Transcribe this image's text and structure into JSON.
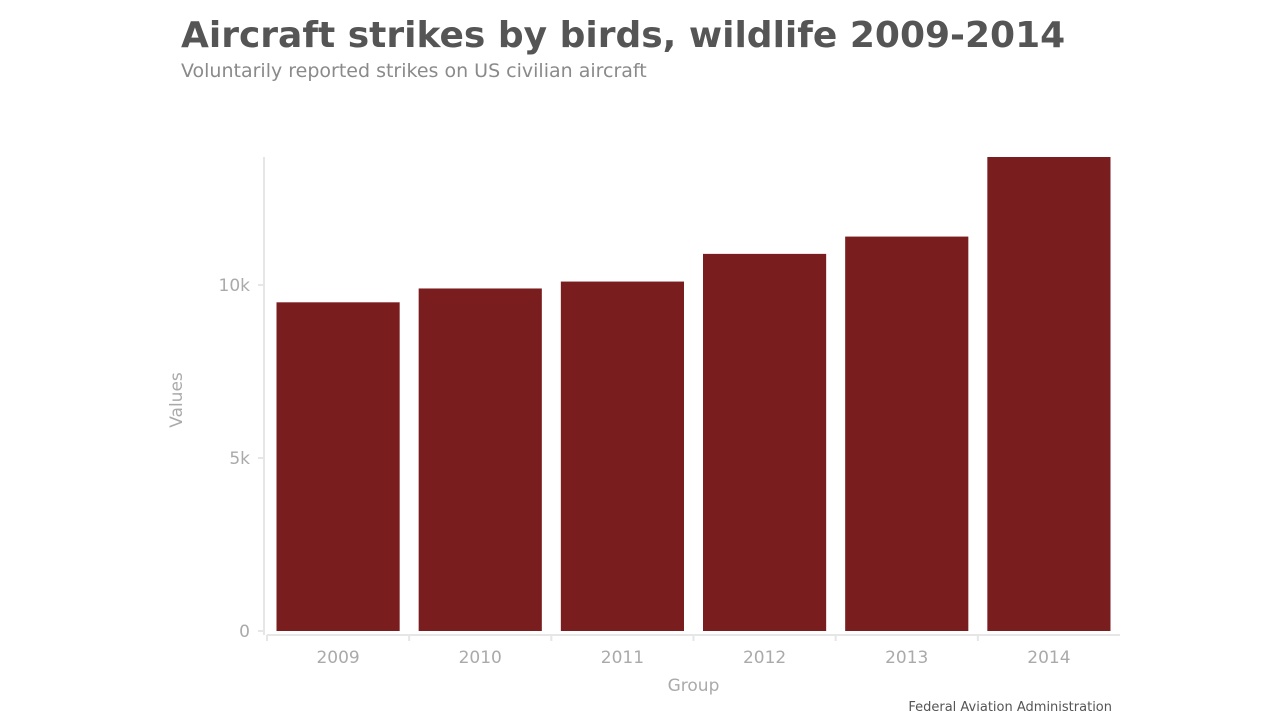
{
  "title": "Aircraft strikes by birds, wildlife 2009-2014",
  "subtitle": "Voluntarily reported strikes on US civilian aircraft",
  "source": "Federal Aviation Administration",
  "colors": {
    "bar": "#7a1d1f",
    "axis_line": "#e6e6e6",
    "tick_text": "#aaaaaa",
    "title": "#555555",
    "subtitle": "#8a8a8a"
  },
  "chart_data": {
    "type": "bar",
    "categories": [
      "2009",
      "2010",
      "2011",
      "2012",
      "2013",
      "2014"
    ],
    "values": [
      9500,
      9900,
      10100,
      10900,
      11400,
      13700
    ],
    "xlabel": "Group",
    "ylabel": "Values",
    "ylim": [
      0,
      13700
    ],
    "yticks": [
      0,
      5000,
      10000
    ],
    "ytick_labels": [
      "0",
      "5k",
      "10k"
    ],
    "grid": false,
    "legend": "none"
  }
}
